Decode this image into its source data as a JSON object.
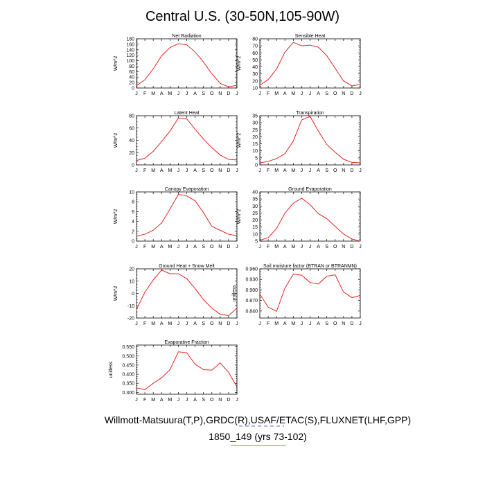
{
  "title": "Central U.S. (30-50N,105-90W)",
  "footer": {
    "line1": "Willmott-Matsuura(T,P),GRDC(R),USAF/ETAC(S),FLUXNET(LHF,GPP)",
    "line2": "1850_149 (yrs 73-102)"
  },
  "colors": {
    "series": "#e8201c",
    "line2_underline": "#e8201c",
    "line2_dash": "#2a3aa8"
  },
  "chart_data": [
    {
      "type": "line",
      "title": "Net Radiation",
      "ylabel": "W/m^2",
      "categories": [
        "J",
        "F",
        "M",
        "A",
        "M",
        "J",
        "J",
        "A",
        "S",
        "O",
        "N",
        "D",
        "J"
      ],
      "values": [
        8,
        30,
        70,
        118,
        148,
        162,
        158,
        132,
        95,
        52,
        17,
        4,
        10
      ],
      "ylim": [
        0,
        180
      ],
      "yticks": [
        0,
        20,
        40,
        60,
        80,
        100,
        120,
        140,
        160,
        180
      ],
      "ytick_labels": [
        "0",
        "20",
        "40",
        "60",
        "80",
        "100",
        "120",
        "140",
        "160",
        "180"
      ]
    },
    {
      "type": "line",
      "title": "Sensible Heat",
      "ylabel": "W/m^2",
      "categories": [
        "J",
        "F",
        "M",
        "A",
        "M",
        "J",
        "J",
        "A",
        "S",
        "O",
        "N",
        "D",
        "J"
      ],
      "values": [
        14,
        22,
        37,
        61,
        75,
        70,
        71,
        68,
        56,
        38,
        20,
        13,
        15
      ],
      "ylim": [
        10,
        80
      ],
      "yticks": [
        10,
        20,
        30,
        40,
        50,
        60,
        70,
        80
      ],
      "ytick_labels": [
        "10",
        "20",
        "30",
        "40",
        "50",
        "60",
        "70",
        "80"
      ]
    },
    {
      "type": "line",
      "title": "Latent Heat",
      "ylabel": "W/m^2",
      "categories": [
        "J",
        "F",
        "M",
        "A",
        "M",
        "J",
        "J",
        "A",
        "S",
        "O",
        "N",
        "D",
        "J"
      ],
      "values": [
        7,
        11,
        22,
        38,
        55,
        76,
        75,
        58,
        42,
        28,
        16,
        9,
        8
      ],
      "ylim": [
        0,
        80
      ],
      "yticks": [
        0,
        20,
        40,
        60,
        80
      ],
      "ytick_labels": [
        "0",
        "20",
        "40",
        "60",
        "80"
      ]
    },
    {
      "type": "line",
      "title": "Transpiration",
      "ylabel": "W/m^2",
      "categories": [
        "J",
        "F",
        "M",
        "A",
        "M",
        "J",
        "J",
        "A",
        "S",
        "O",
        "N",
        "D",
        "J"
      ],
      "values": [
        1.5,
        2.5,
        4.5,
        8,
        17,
        32,
        34.5,
        24,
        14.5,
        9,
        4,
        1.8,
        1.5
      ],
      "ylim": [
        0,
        35
      ],
      "yticks": [
        0,
        5,
        10,
        15,
        20,
        25,
        30,
        35
      ],
      "ytick_labels": [
        "0",
        "5",
        "10",
        "15",
        "20",
        "25",
        "30",
        "35"
      ]
    },
    {
      "type": "line",
      "title": "Canopy Evaporation",
      "ylabel": "W/m^2",
      "categories": [
        "J",
        "F",
        "M",
        "A",
        "M",
        "J",
        "J",
        "A",
        "S",
        "O",
        "N",
        "D",
        "J"
      ],
      "values": [
        1,
        1.4,
        2.2,
        3.7,
        6.5,
        9.5,
        9.2,
        8.2,
        5.8,
        3,
        2.2,
        1.4,
        1.1
      ],
      "ylim": [
        0,
        10
      ],
      "yticks": [
        0,
        2,
        4,
        6,
        8,
        10
      ],
      "ytick_labels": [
        "0",
        "2",
        "4",
        "6",
        "8",
        "10"
      ]
    },
    {
      "type": "line",
      "title": "Ground Evaporation",
      "ylabel": "W/m^2",
      "categories": [
        "J",
        "F",
        "M",
        "A",
        "M",
        "J",
        "J",
        "A",
        "S",
        "O",
        "N",
        "D",
        "J"
      ],
      "values": [
        5.5,
        7.5,
        14,
        25,
        32,
        35.5,
        31,
        24.5,
        21,
        15.5,
        10,
        6.5,
        5
      ],
      "ylim": [
        5,
        40
      ],
      "yticks": [
        5,
        10,
        15,
        20,
        25,
        30,
        35,
        40
      ],
      "ytick_labels": [
        "5",
        "10",
        "15",
        "20",
        "25",
        "30",
        "35",
        "40"
      ]
    },
    {
      "type": "line",
      "title": "Ground Heat + Snow Melt",
      "ylabel": "W/m^2",
      "categories": [
        "J",
        "F",
        "M",
        "A",
        "M",
        "J",
        "J",
        "A",
        "S",
        "O",
        "N",
        "D",
        "J"
      ],
      "values": [
        -13,
        1,
        11,
        19,
        16,
        16,
        12,
        4,
        -5,
        -12,
        -17,
        -18,
        -12
      ],
      "ylim": [
        -20,
        20
      ],
      "yticks": [
        -20,
        -10,
        0,
        10,
        20
      ],
      "ytick_labels": [
        "-20",
        "-10",
        "0",
        "10",
        "20"
      ]
    },
    {
      "type": "line",
      "title": "Soil moisture factor (BTRAN or BTRANMN)",
      "ylabel": "unitless",
      "categories": [
        "J",
        "F",
        "M",
        "A",
        "M",
        "J",
        "J",
        "A",
        "S",
        "O",
        "N",
        "D",
        "J"
      ],
      "values": [
        0.888,
        0.851,
        0.839,
        0.905,
        0.945,
        0.942,
        0.921,
        0.917,
        0.939,
        0.943,
        0.894,
        0.878,
        0.884
      ],
      "ylim": [
        0.82,
        0.96
      ],
      "yticks": [
        0.84,
        0.87,
        0.9,
        0.93,
        0.96
      ],
      "ytick_labels": [
        "0.840",
        "0.870",
        "0.900",
        "0.930",
        "0.960"
      ]
    },
    {
      "type": "line",
      "title": "Evaporative Fraction",
      "ylabel": "unitless",
      "categories": [
        "J",
        "F",
        "M",
        "A",
        "M",
        "J",
        "J",
        "A",
        "S",
        "O",
        "N",
        "D",
        "J"
      ],
      "values": [
        0.325,
        0.315,
        0.35,
        0.38,
        0.425,
        0.523,
        0.518,
        0.455,
        0.425,
        0.422,
        0.462,
        0.41,
        0.33
      ],
      "ylim": [
        0.29,
        0.56
      ],
      "yticks": [
        0.3,
        0.35,
        0.4,
        0.45,
        0.5,
        0.55
      ],
      "ytick_labels": [
        "0.300",
        "0.350",
        "0.400",
        "0.450",
        "0.500",
        "0.550"
      ]
    }
  ]
}
